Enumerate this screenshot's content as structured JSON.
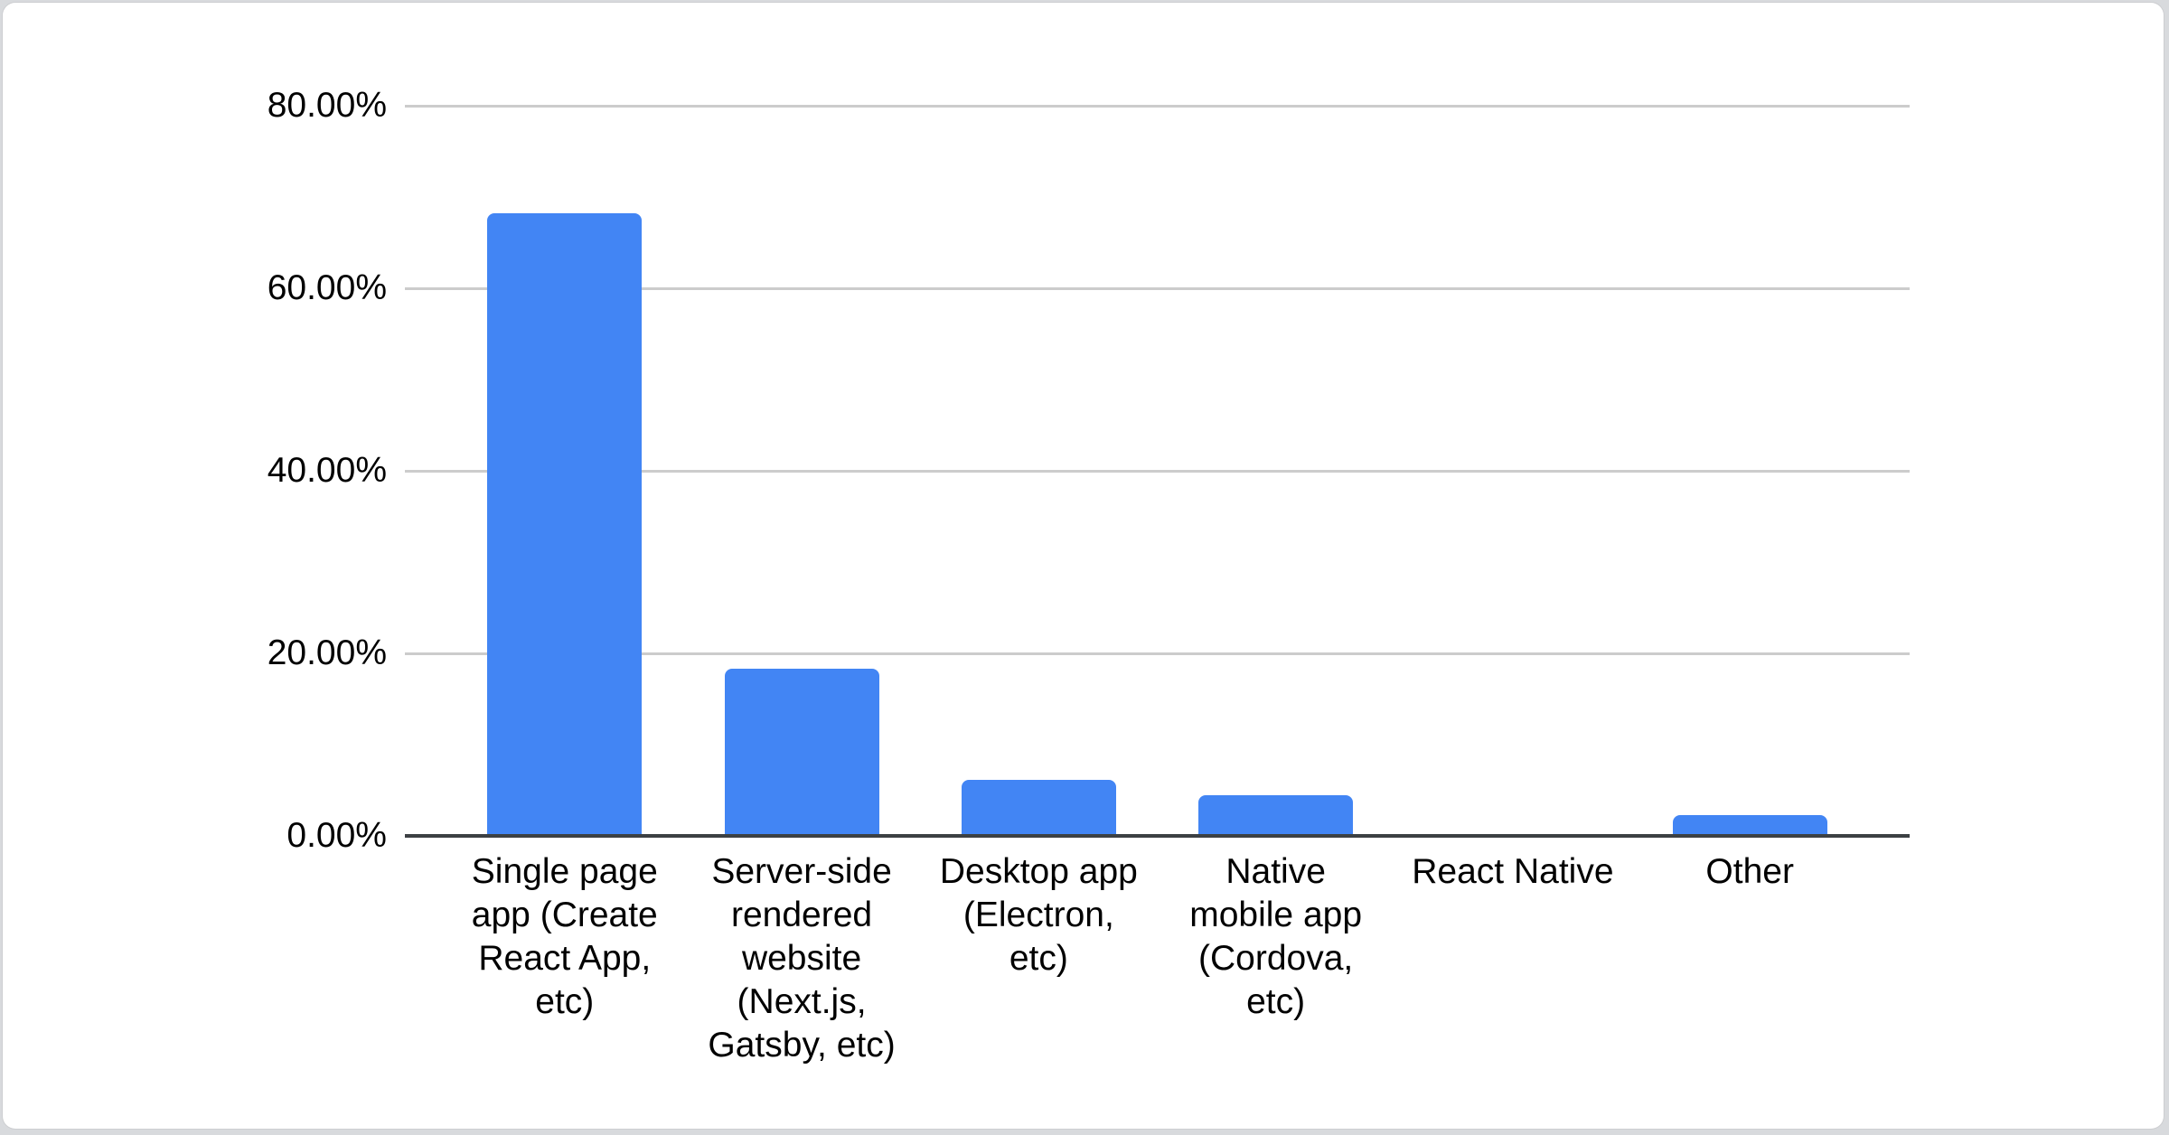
{
  "page": {
    "background_color": "#d8dadd",
    "card_color": "#ffffff"
  },
  "chart_data": {
    "type": "bar",
    "title": "",
    "categories": [
      "Single page app (Create React App, etc)",
      "Server-side rendered website (Next.js, Gatsby, etc)",
      "Desktop app (Electron, etc)",
      "Native mobile app (Cordova, etc)",
      "React Native",
      "Other"
    ],
    "values": [
      68.2,
      18.3,
      6.1,
      4.5,
      0,
      2.3
    ],
    "value_unit": "%",
    "xlabel": "",
    "ylabel": "",
    "ylim": [
      0,
      80
    ],
    "yticks": [
      "80.00%",
      "60.00%",
      "40.00%",
      "20.00%",
      "0.00%"
    ],
    "ytick_values": [
      80,
      60,
      40,
      20,
      0
    ],
    "grid": true,
    "legend_position": "none",
    "bar_color": "#4285f4",
    "gridline_color": "#cccccc",
    "axis_color": "#3c4043",
    "label_color": "#000000"
  }
}
